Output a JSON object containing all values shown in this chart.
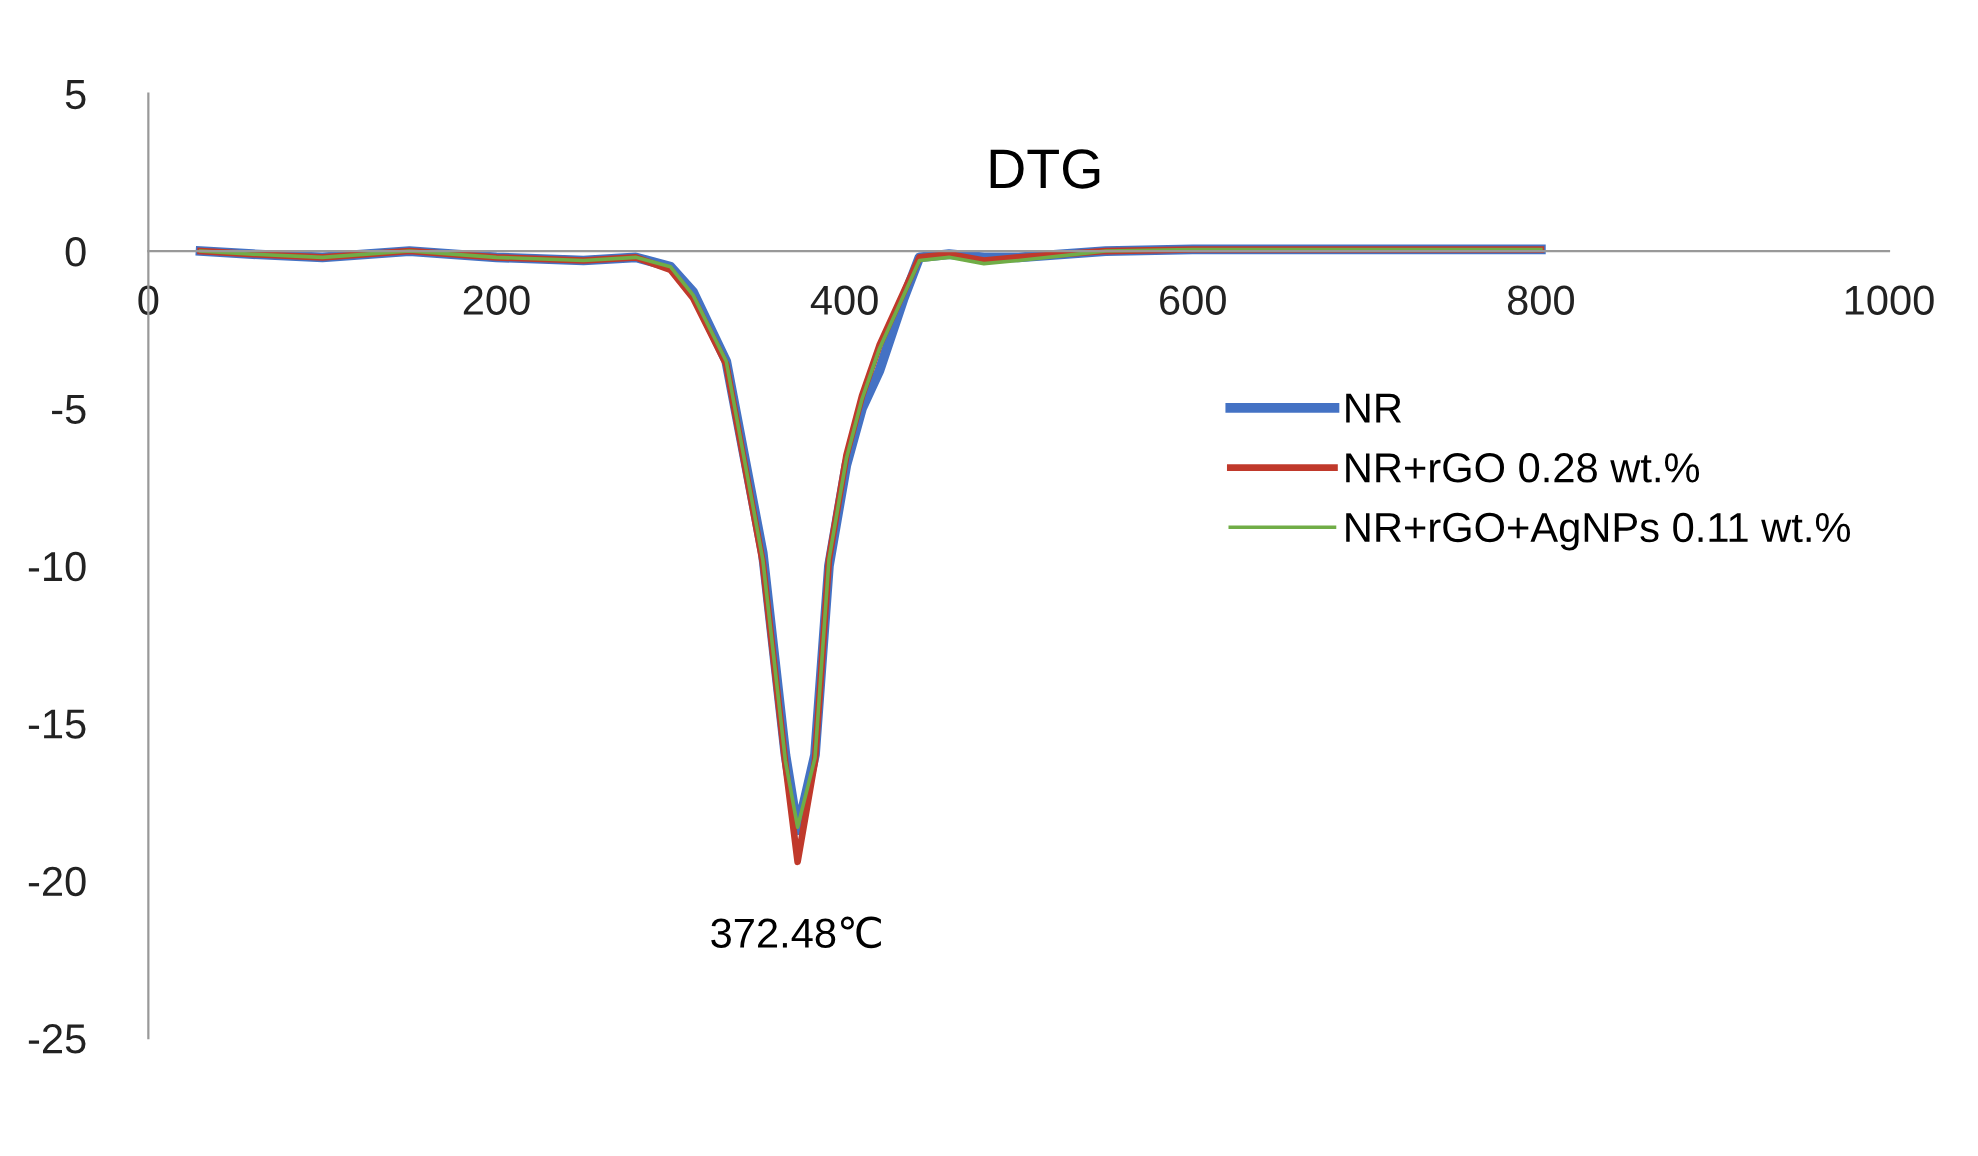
{
  "chart_data": {
    "type": "line",
    "title": "DTG",
    "x": [
      30,
      60,
      100,
      150,
      200,
      250,
      280,
      300,
      313,
      332,
      353,
      366,
      373,
      383,
      391,
      401,
      410,
      420,
      434,
      443,
      460,
      480,
      500,
      550,
      600,
      700,
      800
    ],
    "series": [
      {
        "name": "NR",
        "color": "#4472c4",
        "values": [
          0,
          -0.1,
          -0.2,
          0,
          -0.2,
          -0.3,
          -0.2,
          -0.5,
          -1.3,
          -3.5,
          -9.6,
          -16,
          -18.4,
          -16,
          -10,
          -6.8,
          -5,
          -3.8,
          -1.5,
          -0.2,
          -0.1,
          -0.2,
          -0.2,
          0,
          0.05,
          0.05,
          0.05
        ]
      },
      {
        "name": "NR+rGO 0.28 wt.%",
        "color": "#c0392b",
        "values": [
          0,
          -0.1,
          -0.2,
          0,
          -0.2,
          -0.3,
          -0.2,
          -0.6,
          -1.5,
          -3.6,
          -9.9,
          -16.3,
          -19.4,
          -16.2,
          -9.8,
          -6.5,
          -4.6,
          -3,
          -1.3,
          -0.2,
          -0.1,
          -0.3,
          -0.2,
          0,
          0.05,
          0.05,
          0.05
        ]
      },
      {
        "name": "NR+rGO+AgNPs 0.11 wt.%",
        "color": "#70ad47",
        "values": [
          0,
          -0.1,
          -0.2,
          0,
          -0.2,
          -0.3,
          -0.2,
          -0.5,
          -1.4,
          -3.5,
          -9.8,
          -16.2,
          -18.3,
          -16.1,
          -9.8,
          -6.6,
          -4.7,
          -3.1,
          -1.4,
          -0.3,
          -0.2,
          -0.4,
          -0.3,
          0,
          0.05,
          0.05,
          0.05
        ]
      }
    ],
    "xlim": [
      0,
      1000
    ],
    "xticks": [
      0,
      200,
      400,
      600,
      800,
      1000
    ],
    "ylim": [
      -25,
      5
    ],
    "yticks": [
      -25,
      -20,
      -15,
      -10,
      -5,
      0,
      5
    ],
    "annotations": [
      {
        "text": "372.48℃",
        "x": 372.48,
        "y": -19.4
      }
    ],
    "legend": "center right",
    "grid": false,
    "marker": "none",
    "line_style": "solid"
  }
}
